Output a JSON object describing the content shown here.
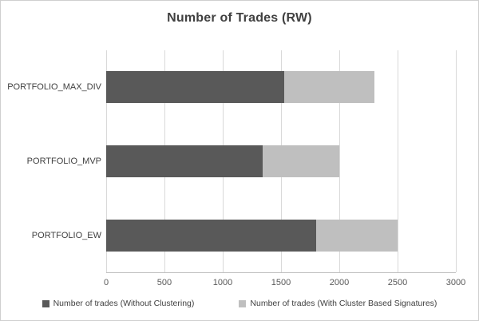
{
  "chart_data": {
    "type": "bar",
    "orientation": "horizontal",
    "stacked": true,
    "title": "Number of Trades (RW)",
    "categories": [
      "PORTFOLIO_MAX_DIV",
      "PORTFOLIO_MVP",
      "PORTFOLIO_EW"
    ],
    "series": [
      {
        "name": "Number of trades (Without Clustering)",
        "color": "#595959",
        "values": [
          1530,
          1340,
          1800
        ]
      },
      {
        "name": "Number of trades (With Cluster Based Signatures)",
        "color": "#bfbfbf",
        "values": [
          770,
          660,
          700
        ]
      }
    ],
    "xticks": [
      0,
      500,
      1000,
      1500,
      2000,
      2500,
      3000
    ],
    "xlim": [
      0,
      3000
    ],
    "xlabel": "",
    "ylabel": "",
    "grid": true,
    "legend_position": "bottom"
  },
  "colors": {
    "border": "#cfcfcf",
    "gridline": "#d9d9d9",
    "axis_line": "#bfbfbf",
    "text": "#404040"
  }
}
